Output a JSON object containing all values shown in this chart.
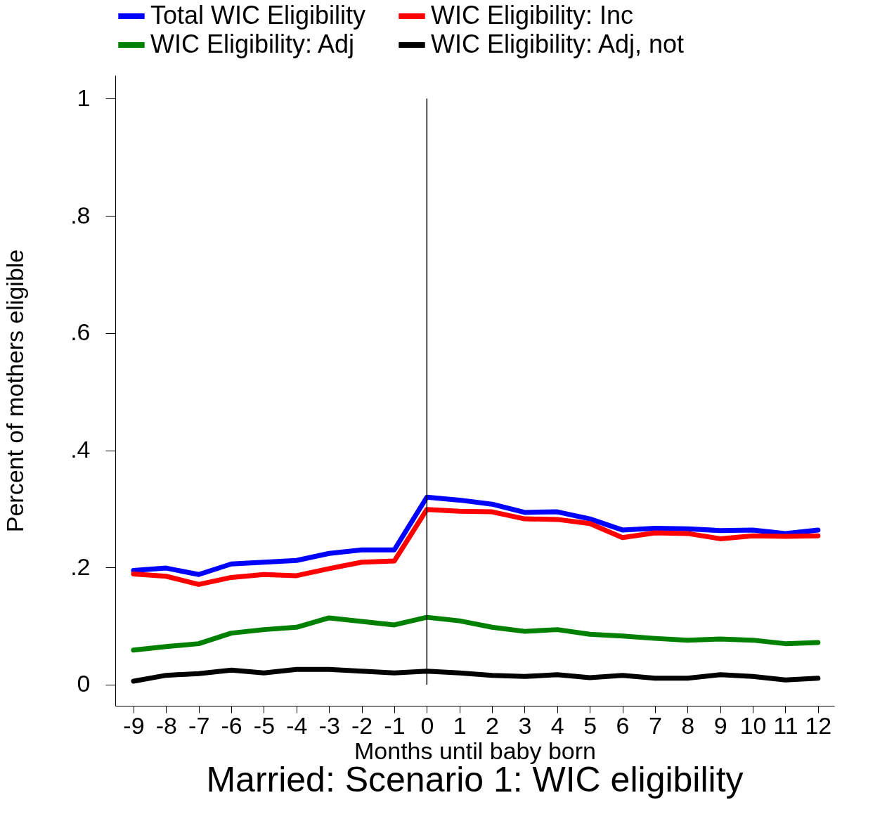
{
  "chart_data": {
    "type": "line",
    "title": "Married: Scenario 1: WIC eligibility",
    "xlabel": "Months until baby born",
    "ylabel": "Percent of mothers eligible",
    "x": [
      -9,
      -8,
      -7,
      -6,
      -5,
      -4,
      -3,
      -2,
      -1,
      0,
      1,
      2,
      3,
      4,
      5,
      6,
      7,
      8,
      9,
      10,
      11,
      12
    ],
    "series": [
      {
        "name": "Total WIC Eligibility",
        "color": "#0000ff",
        "values": [
          0.195,
          0.199,
          0.188,
          0.206,
          0.209,
          0.212,
          0.224,
          0.23,
          0.23,
          0.32,
          0.315,
          0.308,
          0.294,
          0.295,
          0.283,
          0.264,
          0.267,
          0.266,
          0.263,
          0.264,
          0.258,
          0.264
        ]
      },
      {
        "name": "WIC Eligibility: Inc",
        "color": "#ff0000",
        "values": [
          0.189,
          0.185,
          0.171,
          0.183,
          0.188,
          0.186,
          0.198,
          0.209,
          0.211,
          0.299,
          0.296,
          0.295,
          0.283,
          0.282,
          0.275,
          0.251,
          0.259,
          0.258,
          0.249,
          0.254,
          0.253,
          0.254
        ]
      },
      {
        "name": "WIC Eligibility: Adj",
        "color": "#008000",
        "values": [
          0.059,
          0.065,
          0.07,
          0.088,
          0.094,
          0.098,
          0.114,
          0.108,
          0.102,
          0.115,
          0.109,
          0.098,
          0.091,
          0.094,
          0.086,
          0.083,
          0.079,
          0.076,
          0.078,
          0.076,
          0.07,
          0.072
        ]
      },
      {
        "name": "WIC Eligibility: Adj, not",
        "color": "#000000",
        "values": [
          0.006,
          0.016,
          0.019,
          0.025,
          0.02,
          0.026,
          0.026,
          0.023,
          0.02,
          0.023,
          0.02,
          0.016,
          0.014,
          0.017,
          0.012,
          0.016,
          0.011,
          0.011,
          0.017,
          0.014,
          0.008,
          0.011
        ]
      }
    ],
    "xlim": [
      -9.56,
      12.5
    ],
    "xticks": [
      -9,
      -8,
      -7,
      -6,
      -5,
      -4,
      -3,
      -2,
      -1,
      0,
      1,
      2,
      3,
      4,
      5,
      6,
      7,
      8,
      9,
      10,
      11,
      12
    ],
    "ylim": [
      -0.036,
      1.04
    ],
    "yticks": [
      0,
      {
        "value": 0.2,
        "label": ".2"
      },
      {
        "value": 0.4,
        "label": ".4"
      },
      {
        "value": 0.6,
        "label": ".6"
      },
      {
        "value": 0.8,
        "label": ".8"
      },
      1
    ],
    "ref_lines": [
      {
        "axis": "x",
        "value": 0,
        "color": "#000000"
      }
    ],
    "grid": false,
    "legend": "top",
    "marker": "none",
    "line_style": "solid"
  }
}
